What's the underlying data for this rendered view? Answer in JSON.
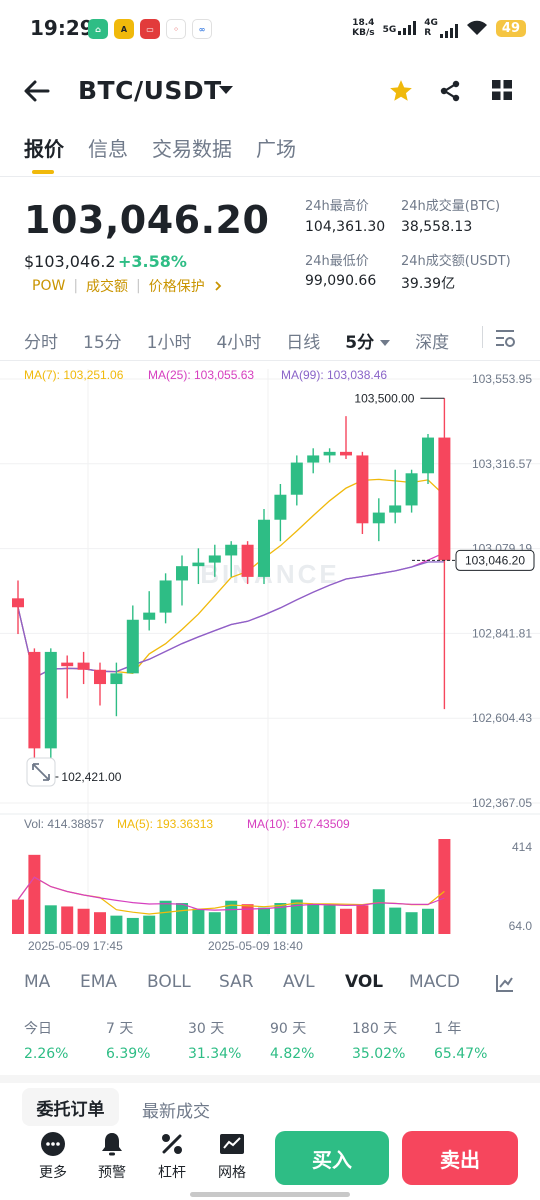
{
  "status_bar": {
    "time": "19:29",
    "net_speed_value": "18.4",
    "net_speed_unit": "KB/s",
    "sig1": "5G",
    "sig2": "4G",
    "sig2_sub": "R",
    "battery": "49"
  },
  "header": {
    "pair": "BTC/USDT",
    "favorited": true
  },
  "tabs": [
    "报价",
    "信息",
    "交易数据",
    "广场"
  ],
  "price": {
    "last": "103,046.20",
    "usd": "$103,046.2",
    "change": "+3.58%",
    "tags": [
      "POW",
      "成交额",
      "价格保护"
    ],
    "high_label": "24h最高价",
    "high": "104,361.30",
    "low_label": "24h最低价",
    "low": "99,090.66",
    "vol_btc_label": "24h成交量(BTC)",
    "vol_btc": "38,558.13",
    "vol_usdt_label": "24h成交额(USDT)",
    "vol_usdt": "39.39亿"
  },
  "intervals": [
    "分时",
    "15分",
    "1小时",
    "4小时",
    "日线",
    "5分",
    "深度"
  ],
  "active_interval": "5分",
  "ma_legend": {
    "ma7": "MA(7): 103,251.06",
    "ma25": "MA(25): 103,055.63",
    "ma99": "MA(99): 103,038.46"
  },
  "vol_legend": {
    "vol": "Vol: 414.38857",
    "ma5": "MA(5): 193.36313",
    "ma10": "MA(10): 167.43509"
  },
  "colors": {
    "up": "#2ebd85",
    "down": "#f6465d",
    "ma7": "#f0b90b",
    "ma25": "#d63fbf",
    "ma99": "#8a64c8",
    "accent": "#f0b90b"
  },
  "chart_data": {
    "type": "candlestick",
    "price_axis_ticks": [
      "103,553.95",
      "103,316.57",
      "103,079.19",
      "102,841.81",
      "102,604.43",
      "102,367.05"
    ],
    "price_range": [
      102367.05,
      103553.95
    ],
    "current_price_label": "103,046.20",
    "current_price": 103046.2,
    "high_marker": "103,500.00",
    "low_marker": "102,421.00",
    "time_labels": [
      "2025-05-09 17:45",
      "2025-05-09 18:40"
    ],
    "volume_axis_ticks": [
      "414",
      "64.0"
    ],
    "candles": [
      {
        "o": 102940,
        "h": 102990,
        "l": 102840,
        "c": 102915
      },
      {
        "o": 102790,
        "h": 102800,
        "l": 102440,
        "c": 102520
      },
      {
        "o": 102520,
        "h": 102800,
        "l": 102490,
        "c": 102790
      },
      {
        "o": 102760,
        "h": 102780,
        "l": 102660,
        "c": 102750
      },
      {
        "o": 102760,
        "h": 102790,
        "l": 102700,
        "c": 102740
      },
      {
        "o": 102740,
        "h": 102760,
        "l": 102640,
        "c": 102700
      },
      {
        "o": 102700,
        "h": 102760,
        "l": 102610,
        "c": 102730
      },
      {
        "o": 102730,
        "h": 102920,
        "l": 102730,
        "c": 102880
      },
      {
        "o": 102880,
        "h": 102960,
        "l": 102850,
        "c": 102900
      },
      {
        "o": 102900,
        "h": 103010,
        "l": 102870,
        "c": 102990
      },
      {
        "o": 102990,
        "h": 103060,
        "l": 102920,
        "c": 103030
      },
      {
        "o": 103030,
        "h": 103080,
        "l": 102980,
        "c": 103040
      },
      {
        "o": 103040,
        "h": 103090,
        "l": 103000,
        "c": 103060
      },
      {
        "o": 103060,
        "h": 103100,
        "l": 103000,
        "c": 103090
      },
      {
        "o": 103090,
        "h": 103100,
        "l": 102980,
        "c": 103000
      },
      {
        "o": 103000,
        "h": 103190,
        "l": 102980,
        "c": 103160
      },
      {
        "o": 103160,
        "h": 103260,
        "l": 103100,
        "c": 103230
      },
      {
        "o": 103230,
        "h": 103340,
        "l": 103200,
        "c": 103320
      },
      {
        "o": 103320,
        "h": 103360,
        "l": 103290,
        "c": 103340
      },
      {
        "o": 103340,
        "h": 103360,
        "l": 103320,
        "c": 103350
      },
      {
        "o": 103350,
        "h": 103450,
        "l": 103330,
        "c": 103340
      },
      {
        "o": 103340,
        "h": 103350,
        "l": 103120,
        "c": 103150
      },
      {
        "o": 103150,
        "h": 103220,
        "l": 103100,
        "c": 103180
      },
      {
        "o": 103180,
        "h": 103300,
        "l": 103150,
        "c": 103200
      },
      {
        "o": 103200,
        "h": 103300,
        "l": 103180,
        "c": 103290
      },
      {
        "o": 103290,
        "h": 103400,
        "l": 103260,
        "c": 103390
      },
      {
        "o": 103390,
        "h": 103500,
        "l": 102630,
        "c": 103046.2
      }
    ],
    "volumes": [
      150,
      345,
      125,
      120,
      110,
      95,
      80,
      70,
      80,
      145,
      135,
      110,
      95,
      145,
      130,
      115,
      135,
      150,
      130,
      125,
      110,
      125,
      195,
      115,
      95,
      110,
      414
    ]
  },
  "indicators": [
    "MA",
    "EMA",
    "BOLL",
    "SAR",
    "AVL",
    "VOL",
    "MACD"
  ],
  "active_indicator": "VOL",
  "performance": [
    {
      "label": "今日",
      "value": "2.26%"
    },
    {
      "label": "7 天",
      "value": "6.39%"
    },
    {
      "label": "30 天",
      "value": "31.34%"
    },
    {
      "label": "90 天",
      "value": "4.82%"
    },
    {
      "label": "180 天",
      "value": "35.02%"
    },
    {
      "label": "1 年",
      "value": "65.47%"
    }
  ],
  "order_tabs": [
    "委托订单",
    "最新成交"
  ],
  "bottom_nav": {
    "more": "更多",
    "alert": "预警",
    "leverage": "杠杆",
    "grid": "网格",
    "buy": "买入",
    "sell": "卖出"
  }
}
